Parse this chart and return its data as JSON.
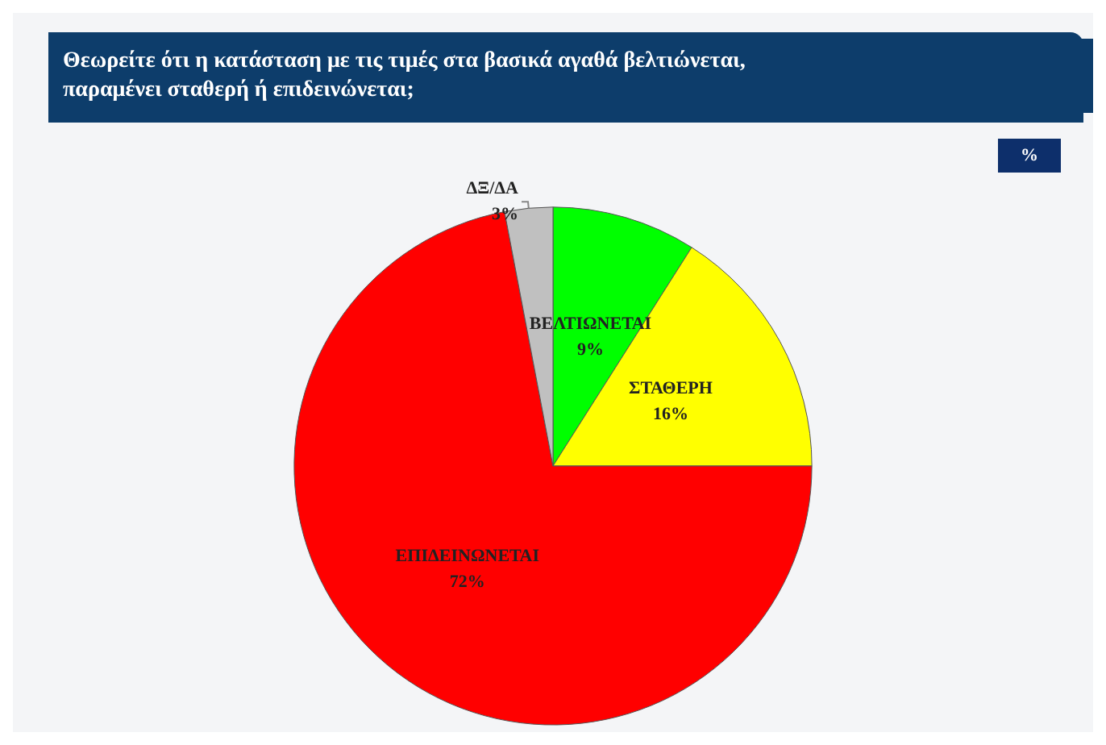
{
  "chart_data": {
    "type": "pie",
    "title": "Θεωρείτε ότι η κατάσταση με τις τιμές στα βασικά αγαθά βελτιώνεται, παραμένει σταθερή ή επιδεινώνεται;",
    "subtitle": "%",
    "categories": [
      "ΒΕΛΤΙΩΝΕΤΑΙ",
      "ΣΤΑΘΕΡΗ",
      "ΕΠΙΔΕΙΝΩΝΕΤΑΙ",
      "ΔΞ/ΔΑ"
    ],
    "values": [
      9,
      16,
      72,
      3
    ],
    "value_labels": [
      "9%",
      "16%",
      "72%",
      "3%"
    ],
    "colors": [
      "#00ff00",
      "#ffff00",
      "#ff0000",
      "#c0c0c0"
    ]
  }
}
